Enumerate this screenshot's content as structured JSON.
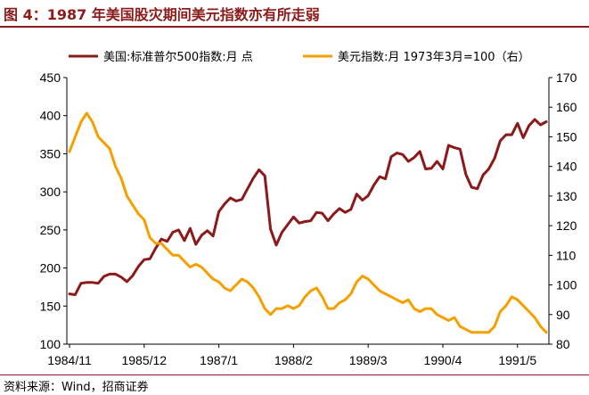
{
  "header": {
    "title": "图 4：1987 年美国股灾期间美元指数亦有所走弱"
  },
  "footer": {
    "source": "资料来源：Wind，招商证券"
  },
  "colors": {
    "accent": "#8b1a1a",
    "series_sp500": "#8b1a1a",
    "series_dxy": "#f5a000"
  },
  "chart_data": {
    "type": "line",
    "title": "",
    "legend_position": "top",
    "grid": false,
    "x_ticks": [
      "1984/11",
      "1985/12",
      "1987/1",
      "1988/2",
      "1989/3",
      "1990/4",
      "1991/5"
    ],
    "x_range": [
      "1984/11",
      "1991/10"
    ],
    "y_left": {
      "ticks": [
        100,
        150,
        200,
        250,
        300,
        350,
        400,
        450
      ],
      "range": [
        100,
        450
      ]
    },
    "y_right": {
      "ticks": [
        80,
        90,
        100,
        110,
        120,
        130,
        140,
        150,
        160,
        170
      ],
      "range": [
        80,
        170
      ]
    },
    "series": [
      {
        "name": "美国:标准普尔500指数:月 点",
        "axis": "left",
        "color": "#8b1a1a",
        "x": [
          "1984/11",
          "1984/12",
          "1985/1",
          "1985/2",
          "1985/3",
          "1985/4",
          "1985/5",
          "1985/6",
          "1985/7",
          "1985/8",
          "1985/9",
          "1985/10",
          "1985/11",
          "1985/12",
          "1986/1",
          "1986/2",
          "1986/3",
          "1986/4",
          "1986/5",
          "1986/6",
          "1986/7",
          "1986/8",
          "1986/9",
          "1986/10",
          "1986/11",
          "1986/12",
          "1987/1",
          "1987/2",
          "1987/3",
          "1987/4",
          "1987/5",
          "1987/6",
          "1987/7",
          "1987/8",
          "1987/9",
          "1987/10",
          "1987/11",
          "1987/12",
          "1988/1",
          "1988/2",
          "1988/3",
          "1988/4",
          "1988/5",
          "1988/6",
          "1988/7",
          "1988/8",
          "1988/9",
          "1988/10",
          "1988/11",
          "1988/12",
          "1989/1",
          "1989/2",
          "1989/3",
          "1989/4",
          "1989/5",
          "1989/6",
          "1989/7",
          "1989/8",
          "1989/9",
          "1989/10",
          "1989/11",
          "1989/12",
          "1990/1",
          "1990/2",
          "1990/3",
          "1990/4",
          "1990/5",
          "1990/6",
          "1990/7",
          "1990/8",
          "1990/9",
          "1990/10",
          "1990/11",
          "1990/12",
          "1991/1",
          "1991/2",
          "1991/3",
          "1991/4",
          "1991/5",
          "1991/6",
          "1991/7",
          "1991/8",
          "1991/9",
          "1991/10"
        ],
        "values": [
          166,
          165,
          180,
          181,
          181,
          180,
          189,
          192,
          192,
          188,
          182,
          190,
          202,
          211,
          212,
          226,
          238,
          235,
          247,
          250,
          236,
          252,
          231,
          243,
          249,
          242,
          274,
          284,
          292,
          288,
          290,
          304,
          318,
          329,
          321,
          251,
          230,
          247,
          257,
          267,
          259,
          261,
          262,
          273,
          272,
          262,
          271,
          278,
          273,
          277,
          297,
          289,
          295,
          309,
          320,
          317,
          346,
          351,
          349,
          340,
          345,
          353,
          330,
          331,
          340,
          330,
          361,
          358,
          356,
          323,
          306,
          304,
          322,
          330,
          344,
          367,
          375,
          375,
          390,
          371,
          387,
          395,
          388,
          392
        ]
      },
      {
        "name": "美元指数:月 1973年3月=100（右）",
        "axis": "right",
        "color": "#f5a000",
        "x": [
          "1984/11",
          "1984/12",
          "1985/1",
          "1985/2",
          "1985/3",
          "1985/4",
          "1985/5",
          "1985/6",
          "1985/7",
          "1985/8",
          "1985/9",
          "1985/10",
          "1985/11",
          "1985/12",
          "1986/1",
          "1986/2",
          "1986/3",
          "1986/4",
          "1986/5",
          "1986/6",
          "1986/7",
          "1986/8",
          "1986/9",
          "1986/10",
          "1986/11",
          "1986/12",
          "1987/1",
          "1987/2",
          "1987/3",
          "1987/4",
          "1987/5",
          "1987/6",
          "1987/7",
          "1987/8",
          "1987/9",
          "1987/10",
          "1987/11",
          "1987/12",
          "1988/1",
          "1988/2",
          "1988/3",
          "1988/4",
          "1988/5",
          "1988/6",
          "1988/7",
          "1988/8",
          "1988/9",
          "1988/10",
          "1988/11",
          "1988/12",
          "1989/1",
          "1989/2",
          "1989/3",
          "1989/4",
          "1989/5",
          "1989/6",
          "1989/7",
          "1989/8",
          "1989/9",
          "1989/10",
          "1989/11",
          "1989/12",
          "1990/1",
          "1990/2",
          "1990/3",
          "1990/4",
          "1990/5",
          "1990/6",
          "1990/7",
          "1990/8",
          "1990/9",
          "1990/10",
          "1990/11",
          "1990/12",
          "1991/1",
          "1991/2",
          "1991/3",
          "1991/4",
          "1991/5",
          "1991/6",
          "1991/7",
          "1991/8",
          "1991/9",
          "1991/10"
        ],
        "values": [
          145,
          150,
          155,
          158,
          155,
          150,
          148,
          146,
          140,
          136,
          130,
          127,
          124,
          122,
          116,
          114,
          114,
          112,
          110,
          110,
          108,
          106,
          107,
          106,
          104,
          102,
          101,
          99,
          98,
          100,
          102,
          101,
          99,
          96,
          92,
          90,
          92,
          92,
          93,
          92,
          93,
          96,
          98,
          99,
          96,
          92,
          92,
          94,
          95,
          97,
          101,
          103,
          102,
          100,
          98,
          97,
          96,
          95,
          94,
          95,
          92,
          91,
          92,
          92,
          90,
          89,
          88,
          89,
          86,
          85,
          84,
          84,
          84,
          84,
          86,
          91,
          93,
          96,
          95,
          93,
          91,
          89,
          86,
          84
        ]
      }
    ]
  }
}
